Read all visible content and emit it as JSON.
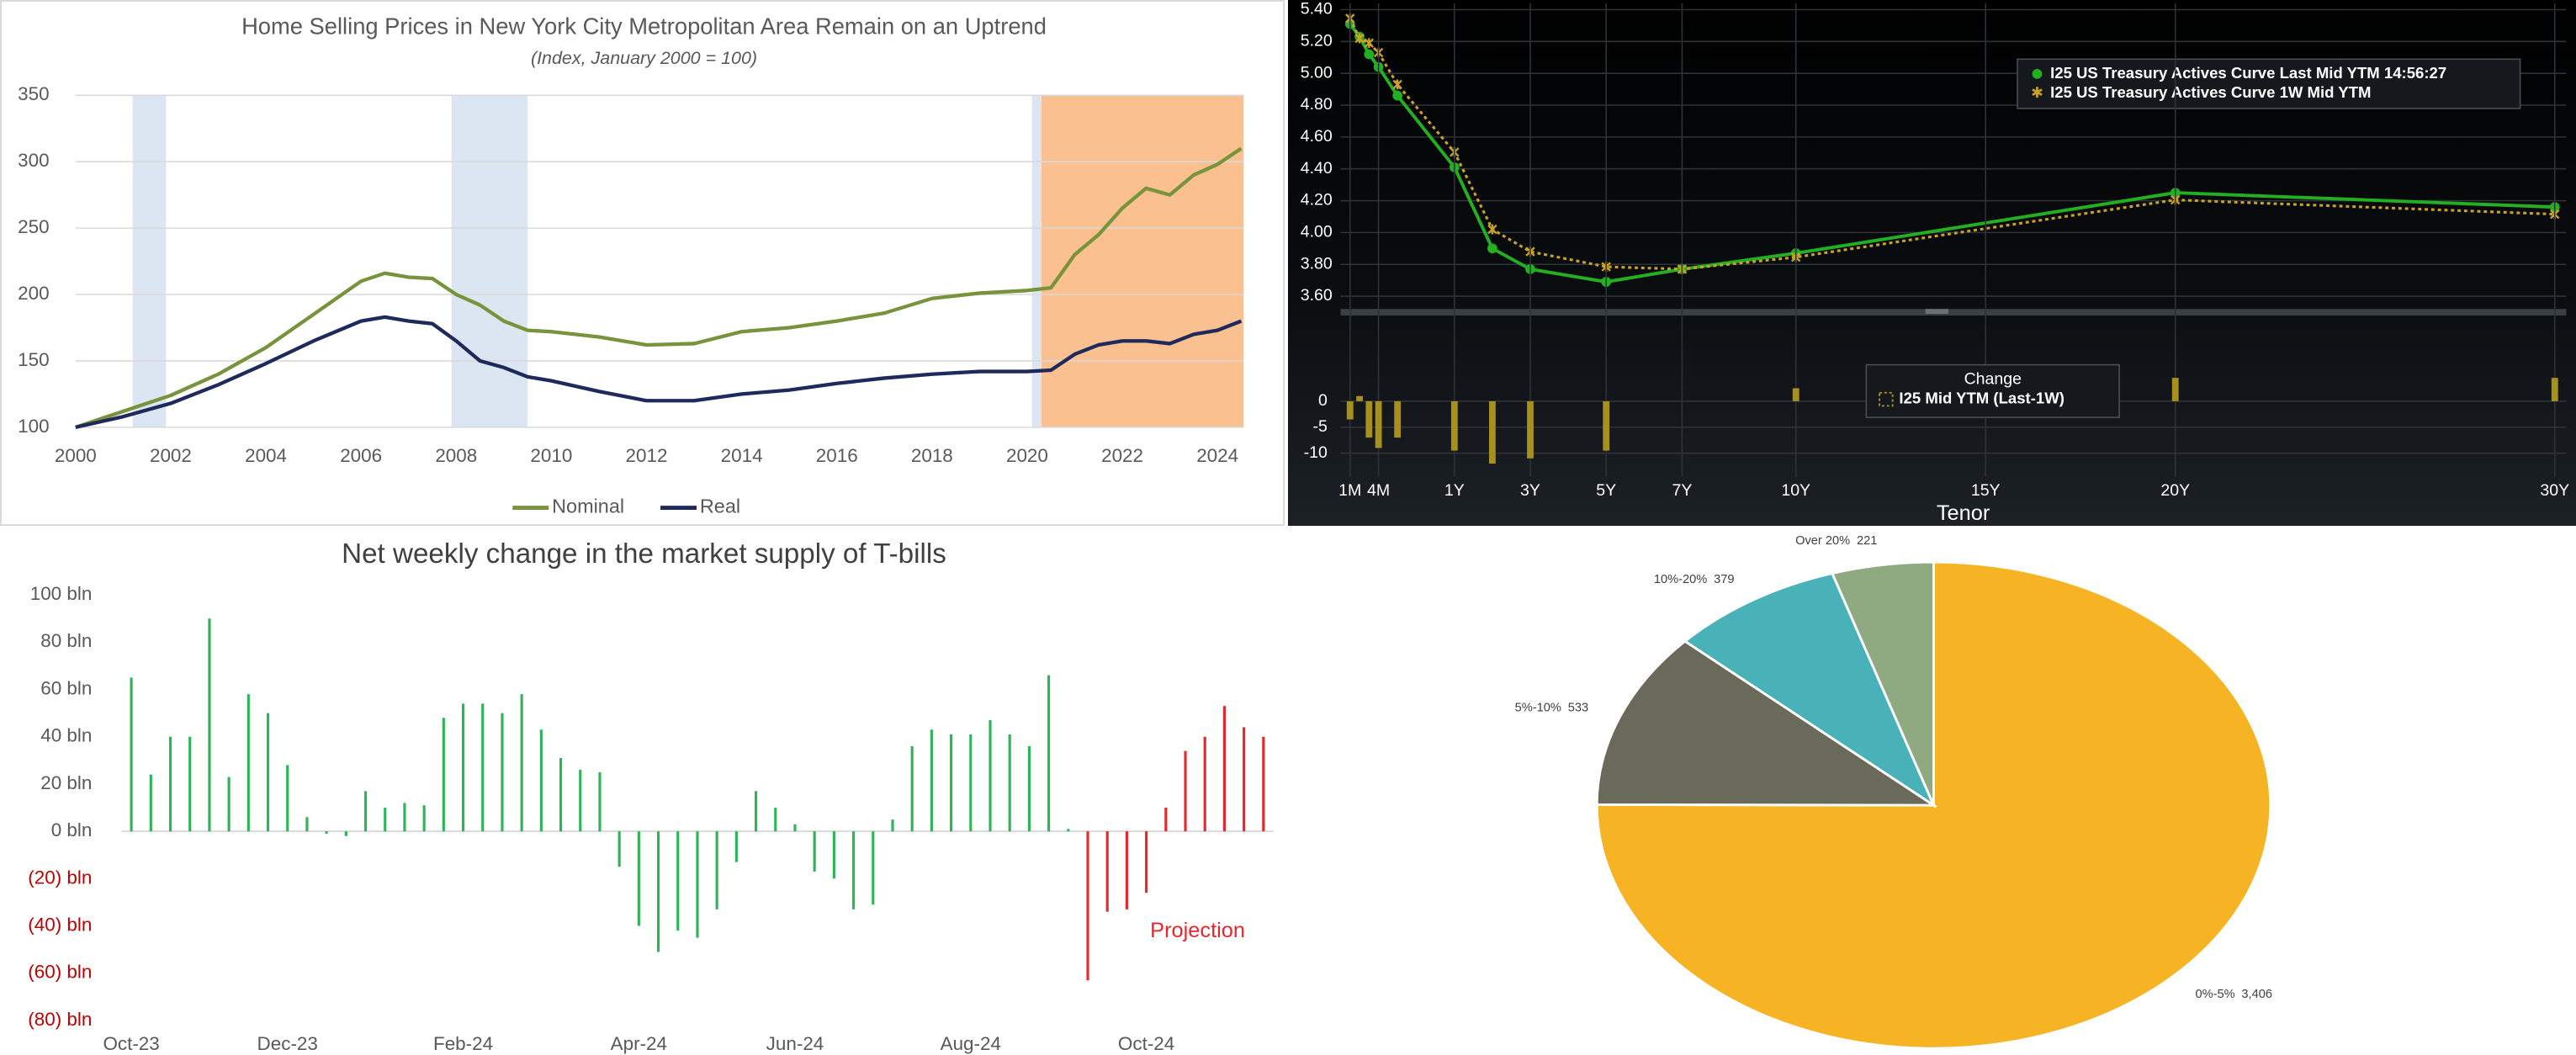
{
  "chart_data": [
    {
      "type": "line",
      "title": "Home Selling Prices in New York City Metropolitan Area Remain on an Uptrend",
      "subtitle": "(Index, January 2000 = 100)",
      "x": [
        2000,
        2001,
        2002,
        2003,
        2004,
        2005,
        2006,
        2006.5,
        2007,
        2007.5,
        2008,
        2008.5,
        2009,
        2009.5,
        2010,
        2011,
        2012,
        2013,
        2014,
        2015,
        2016,
        2017,
        2018,
        2019,
        2020,
        2020.5,
        2021,
        2021.5,
        2022,
        2022.5,
        2023,
        2023.5,
        2024,
        2024.5
      ],
      "series": [
        {
          "name": "Nominal",
          "color": "#77933c",
          "values": [
            100,
            112,
            124,
            140,
            160,
            185,
            210,
            216,
            213,
            212,
            200,
            192,
            180,
            173,
            172,
            168,
            162,
            163,
            172,
            175,
            180,
            186,
            197,
            201,
            203,
            205,
            230,
            245,
            265,
            280,
            275,
            290,
            298,
            310
          ]
        },
        {
          "name": "Real",
          "color": "#1f2a5c",
          "values": [
            100,
            108,
            118,
            132,
            148,
            165,
            180,
            183,
            180,
            178,
            165,
            150,
            145,
            138,
            135,
            127,
            120,
            120,
            125,
            128,
            133,
            137,
            140,
            142,
            142,
            143,
            155,
            162,
            165,
            165,
            163,
            170,
            173,
            180
          ]
        }
      ],
      "xlim": [
        2000,
        2024.55
      ],
      "xticks": [
        2000,
        2002,
        2004,
        2006,
        2008,
        2010,
        2012,
        2014,
        2016,
        2018,
        2020,
        2022,
        2024
      ],
      "ylim": [
        100,
        350
      ],
      "yticks": [
        100,
        150,
        200,
        250,
        300,
        350
      ],
      "grid": true,
      "legend": "bottom",
      "shaded_ranges": [
        {
          "x0": 2001.2,
          "x1": 2001.9,
          "color": "#dce6f2"
        },
        {
          "x0": 2007.9,
          "x1": 2009.5,
          "color": "#dce6f2"
        },
        {
          "x0": 2020.1,
          "x1": 2020.3,
          "color": "#dce6f2"
        },
        {
          "x0": 2020.3,
          "x1": 2024.55,
          "color": "#fac090"
        }
      ]
    },
    {
      "type": "line",
      "x": [
        0.0833,
        0.1667,
        0.25,
        0.3333,
        0.5,
        1,
        2,
        3,
        5,
        7,
        10,
        20,
        30
      ],
      "series": [
        {
          "name": "I25 US Treasury Actives Curve Last Mid YTM 14:56:27",
          "color": "#22b022",
          "marker": "circle",
          "line_style": "solid",
          "values": [
            5.31,
            5.23,
            5.12,
            5.04,
            4.86,
            4.41,
            3.9,
            3.77,
            3.69,
            3.77,
            3.87,
            4.25,
            4.16
          ]
        },
        {
          "name": "I25 US Treasury Actives Curve 1W Mid YTM",
          "color": "#c9a227",
          "marker": "x",
          "line_style": "dotted",
          "values": [
            5.345,
            5.22,
            5.19,
            5.13,
            4.93,
            4.505,
            4.02,
            3.88,
            3.785,
            3.77,
            3.845,
            4.205,
            4.115
          ]
        }
      ],
      "xlim": [
        0,
        30.3
      ],
      "ylim": [
        3.52,
        5.44
      ],
      "yticks": [
        {
          "value": 3.6,
          "label": "3.60"
        },
        {
          "value": 3.8,
          "label": "3.80"
        },
        {
          "value": 4,
          "label": "4.00"
        },
        {
          "value": 4.2,
          "label": "4.20"
        },
        {
          "value": 4.4,
          "label": "4.40"
        },
        {
          "value": 4.6,
          "label": "4.60"
        },
        {
          "value": 4.8,
          "label": "4.80"
        },
        {
          "value": 5,
          "label": "5.00"
        },
        {
          "value": 5.2,
          "label": "5.20"
        },
        {
          "value": 5.4,
          "label": "5.40"
        }
      ],
      "grid": true,
      "legend": "top-right"
    },
    {
      "type": "bar",
      "x": [
        0.0833,
        0.1667,
        0.25,
        0.3333,
        0.5,
        1,
        2,
        3,
        5,
        7,
        10,
        20,
        30
      ],
      "legend_title": "Change",
      "series": [
        {
          "name": "I25 Mid YTM (Last-1W)",
          "color": "#a8901c",
          "values": [
            -3.5,
            1,
            -7,
            -9,
            -7,
            -9.5,
            -12,
            -11,
            -9.5,
            0,
            2.5,
            4.5,
            4.5
          ]
        }
      ],
      "xlim": [
        0,
        30.3
      ],
      "xticks": [
        {
          "value": 0.0833,
          "label": "1M"
        },
        {
          "value": 0.3333,
          "label": "4M"
        },
        {
          "value": 1,
          "label": "1Y"
        },
        {
          "value": 3,
          "label": "3Y"
        },
        {
          "value": 5,
          "label": "5Y"
        },
        {
          "value": 7,
          "label": "7Y"
        },
        {
          "value": 10,
          "label": "10Y"
        },
        {
          "value": 15,
          "label": "15Y"
        },
        {
          "value": 20,
          "label": "20Y"
        },
        {
          "value": 30,
          "label": "30Y"
        }
      ],
      "xlabel": "Tenor",
      "ylim": [
        -14.5,
        16.5
      ],
      "yticks": [
        -10,
        -5,
        0
      ],
      "grid": true,
      "legend": "center"
    },
    {
      "type": "bar",
      "title": "Net weekly change in the market supply of T-bills",
      "categories": [
        "Oct-23",
        null,
        null,
        null,
        null,
        null,
        null,
        null,
        "Dec-23",
        null,
        null,
        null,
        null,
        null,
        null,
        null,
        null,
        "Feb-24",
        null,
        null,
        null,
        null,
        null,
        null,
        null,
        null,
        "Apr-24",
        null,
        null,
        null,
        null,
        null,
        null,
        null,
        "Jun-24",
        null,
        null,
        null,
        null,
        null,
        null,
        null,
        null,
        "Aug-24",
        null,
        null,
        null,
        null,
        null,
        null,
        null,
        null,
        "Oct-24",
        null,
        null,
        null,
        null,
        null,
        null
      ],
      "values": [
        65,
        24,
        40,
        40,
        90,
        23,
        58,
        50,
        28,
        6,
        -1,
        -2,
        17,
        10,
        12,
        11,
        48,
        54,
        54,
        50,
        58,
        43,
        31,
        26,
        25,
        -15,
        -40,
        -51,
        -42,
        -45,
        -33,
        -13,
        17,
        10,
        3,
        -17,
        -20,
        -33,
        -31,
        5,
        36,
        43,
        41,
        41,
        47,
        41,
        36,
        66,
        1,
        -63,
        -34,
        -33,
        -26,
        10,
        34,
        40,
        53,
        44,
        40
      ],
      "color": "#2bb557",
      "projection_color": "#e8262b",
      "projection_start": 49,
      "annotation": "Projection",
      "ylim": [
        -80,
        100
      ],
      "yticks": [
        {
          "value": 100,
          "label": "100 bln"
        },
        {
          "value": 80,
          "label": "80 bln"
        },
        {
          "value": 60,
          "label": "60 bln"
        },
        {
          "value": 40,
          "label": "40 bln"
        },
        {
          "value": 20,
          "label": "20 bln"
        },
        {
          "value": 0,
          "label": "0 bln"
        },
        {
          "value": -20,
          "label": "(20) bln"
        },
        {
          "value": -40,
          "label": "(40) bln"
        },
        {
          "value": -60,
          "label": "(60) bln"
        },
        {
          "value": -80,
          "label": "(80) bln"
        }
      ],
      "negative_tick_color": "#c00000",
      "grid": false
    },
    {
      "type": "pie",
      "categories": [
        "0%-5%",
        "5%-10%",
        "10%-20%",
        "Over 20%"
      ],
      "values": [
        3406,
        533,
        379,
        221
      ],
      "value_labels": [
        "3,406",
        "533",
        "379",
        "221"
      ],
      "colors": [
        "#f6b324",
        "#696a5a",
        "#48b2b8",
        "#8faa80"
      ]
    }
  ]
}
